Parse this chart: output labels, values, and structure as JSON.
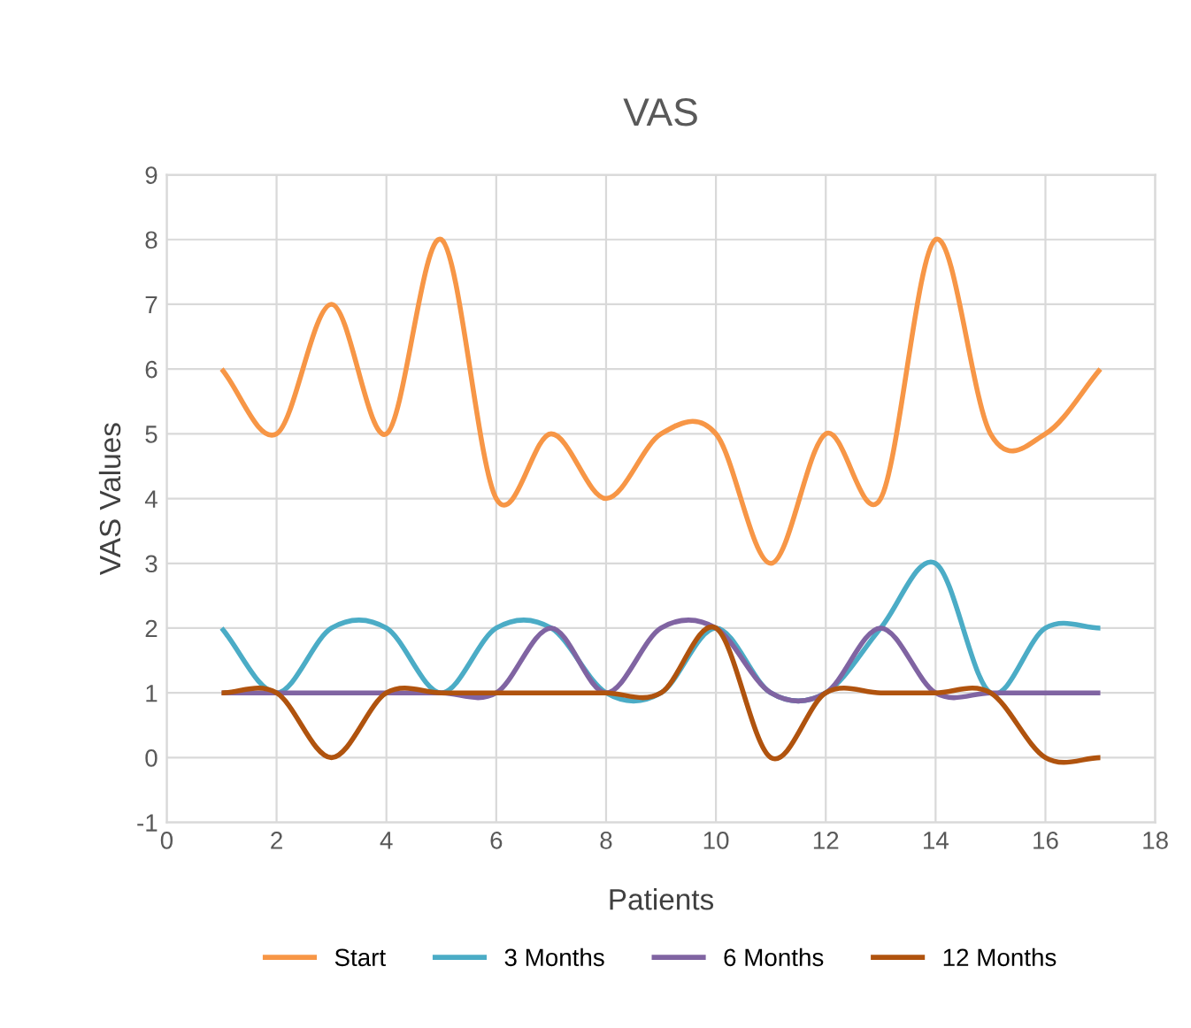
{
  "chart_data": {
    "type": "line",
    "title": "VAS",
    "xlabel": "Patients",
    "ylabel": "VAS Values",
    "x": [
      1,
      2,
      3,
      4,
      5,
      6,
      7,
      8,
      9,
      10,
      11,
      12,
      13,
      14,
      15,
      16,
      17
    ],
    "series": [
      {
        "name": "Start",
        "color": "#f79646",
        "values": [
          6,
          5,
          7,
          5,
          8,
          4,
          5,
          4,
          5,
          5,
          3,
          5,
          4,
          8,
          5,
          5,
          6
        ]
      },
      {
        "name": "3 Months",
        "color": "#4bacc6",
        "values": [
          2,
          1,
          2,
          2,
          1,
          2,
          2,
          1,
          1,
          2,
          1,
          1,
          2,
          3,
          1,
          2,
          2
        ]
      },
      {
        "name": "6 Months",
        "color": "#8064a2",
        "values": [
          1,
          1,
          1,
          1,
          1,
          1,
          2,
          1,
          2,
          2,
          1,
          1,
          2,
          1,
          1,
          1,
          1
        ]
      },
      {
        "name": "12 Months",
        "color": "#b0530e",
        "values": [
          1,
          1,
          0,
          1,
          1,
          1,
          1,
          1,
          1,
          2,
          0,
          1,
          1,
          1,
          1,
          0,
          0
        ]
      }
    ],
    "xlim": [
      0,
      18
    ],
    "xticks": [
      0,
      2,
      4,
      6,
      8,
      10,
      12,
      14,
      16,
      18
    ],
    "ylim": [
      -1,
      9
    ],
    "yticks": [
      -1,
      0,
      1,
      2,
      3,
      4,
      5,
      6,
      7,
      8,
      9
    ],
    "grid": true,
    "legend": "bottom",
    "marker": "none",
    "line_style": "solid"
  }
}
